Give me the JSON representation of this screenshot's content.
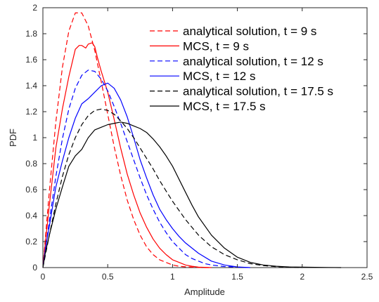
{
  "chart_data": {
    "type": "line",
    "title": "",
    "xlabel": "Amplitude",
    "ylabel": "PDF",
    "xlim": [
      0,
      2.5
    ],
    "ylim": [
      0,
      2
    ],
    "xticks": [
      0,
      0.5,
      1,
      1.5,
      2,
      2.5
    ],
    "xtick_labels": [
      "0",
      "0.5",
      "1",
      "1.5",
      "2",
      "2.5"
    ],
    "yticks": [
      0,
      0.2,
      0.4,
      0.6,
      0.8,
      1,
      1.2,
      1.4,
      1.6,
      1.8,
      2
    ],
    "ytick_labels": [
      "0",
      "0.2",
      "0.4",
      "0.6",
      "0.8",
      "1",
      "1.2",
      "1.4",
      "1.6",
      "1.8",
      "2"
    ],
    "grid": false,
    "legend_position": "top-right",
    "series": [
      {
        "name": "analytical solution, t = 9 s",
        "color": "#ff0000",
        "dash": "dashed",
        "x": [
          0,
          0.05,
          0.1,
          0.15,
          0.2,
          0.25,
          0.3,
          0.35,
          0.4,
          0.45,
          0.5,
          0.55,
          0.6,
          0.65,
          0.7,
          0.75,
          0.8,
          0.85,
          0.9,
          0.95,
          1.0,
          1.05,
          1.1,
          1.15,
          1.2,
          1.25,
          1.3
        ],
        "y": [
          0,
          0.59,
          1.12,
          1.54,
          1.82,
          1.96,
          1.96,
          1.86,
          1.67,
          1.43,
          1.18,
          0.93,
          0.71,
          0.52,
          0.37,
          0.25,
          0.16,
          0.1,
          0.06,
          0.04,
          0.02,
          0.01,
          0.006,
          0.003,
          0.001,
          0,
          0
        ]
      },
      {
        "name": "MCS, t = 9 s",
        "color": "#ff0000",
        "dash": "solid",
        "x": [
          0,
          0.02,
          0.05,
          0.1,
          0.15,
          0.2,
          0.25,
          0.28,
          0.3,
          0.33,
          0.35,
          0.38,
          0.4,
          0.42,
          0.45,
          0.5,
          0.55,
          0.6,
          0.65,
          0.7,
          0.75,
          0.8,
          0.85,
          0.9,
          0.95,
          1.0,
          1.05,
          1.1,
          1.15,
          1.2,
          1.3
        ],
        "y": [
          0,
          0.2,
          0.48,
          0.92,
          1.22,
          1.47,
          1.68,
          1.71,
          1.71,
          1.69,
          1.72,
          1.73,
          1.7,
          1.62,
          1.51,
          1.35,
          1.14,
          0.92,
          0.72,
          0.56,
          0.42,
          0.31,
          0.22,
          0.15,
          0.1,
          0.06,
          0.04,
          0.02,
          0.01,
          0.004,
          0
        ]
      },
      {
        "name": "analytical solution, t = 12 s",
        "color": "#0000ff",
        "dash": "dashed",
        "x": [
          0,
          0.05,
          0.1,
          0.15,
          0.2,
          0.25,
          0.3,
          0.35,
          0.4,
          0.45,
          0.5,
          0.55,
          0.6,
          0.65,
          0.7,
          0.75,
          0.8,
          0.85,
          0.9,
          0.95,
          1.0,
          1.05,
          1.1,
          1.15,
          1.2,
          1.25,
          1.3,
          1.4,
          1.5,
          1.6
        ],
        "y": [
          0,
          0.36,
          0.7,
          0.99,
          1.22,
          1.38,
          1.48,
          1.52,
          1.51,
          1.45,
          1.36,
          1.24,
          1.11,
          0.97,
          0.83,
          0.69,
          0.56,
          0.45,
          0.35,
          0.27,
          0.2,
          0.15,
          0.1,
          0.07,
          0.05,
          0.03,
          0.02,
          0.008,
          0.003,
          0
        ]
      },
      {
        "name": "MCS, t = 12 s",
        "color": "#0000ff",
        "dash": "solid",
        "x": [
          0,
          0.02,
          0.05,
          0.1,
          0.15,
          0.2,
          0.25,
          0.3,
          0.35,
          0.4,
          0.45,
          0.5,
          0.55,
          0.6,
          0.65,
          0.7,
          0.75,
          0.8,
          0.85,
          0.9,
          0.95,
          1.0,
          1.05,
          1.1,
          1.2,
          1.3,
          1.4,
          1.5,
          1.6
        ],
        "y": [
          0,
          0.15,
          0.32,
          0.62,
          0.82,
          1.0,
          1.15,
          1.26,
          1.3,
          1.35,
          1.4,
          1.42,
          1.38,
          1.29,
          1.16,
          1.0,
          0.83,
          0.69,
          0.56,
          0.45,
          0.37,
          0.3,
          0.24,
          0.19,
          0.11,
          0.05,
          0.02,
          0.005,
          0
        ]
      },
      {
        "name": "analytical solution, t = 17.5 s",
        "color": "#000000",
        "dash": "dashed",
        "x": [
          0,
          0.05,
          0.1,
          0.15,
          0.2,
          0.25,
          0.3,
          0.35,
          0.4,
          0.45,
          0.5,
          0.55,
          0.6,
          0.65,
          0.7,
          0.75,
          0.8,
          0.85,
          0.9,
          0.95,
          1.0,
          1.1,
          1.2,
          1.3,
          1.4,
          1.5,
          1.6,
          1.7,
          1.8,
          1.9,
          2.0
        ],
        "y": [
          0,
          0.25,
          0.49,
          0.7,
          0.87,
          1.0,
          1.1,
          1.17,
          1.21,
          1.22,
          1.21,
          1.18,
          1.13,
          1.07,
          1.0,
          0.92,
          0.84,
          0.76,
          0.67,
          0.59,
          0.51,
          0.37,
          0.25,
          0.16,
          0.1,
          0.06,
          0.03,
          0.015,
          0.007,
          0.003,
          0
        ]
      },
      {
        "name": "MCS, t = 17.5 s",
        "color": "#000000",
        "dash": "solid",
        "x": [
          0,
          0.02,
          0.05,
          0.1,
          0.15,
          0.2,
          0.25,
          0.3,
          0.35,
          0.4,
          0.45,
          0.5,
          0.55,
          0.6,
          0.65,
          0.7,
          0.75,
          0.8,
          0.85,
          0.9,
          0.95,
          1.0,
          1.05,
          1.1,
          1.15,
          1.2,
          1.3,
          1.4,
          1.5,
          1.6,
          1.7,
          1.8,
          1.9,
          2.0,
          2.1,
          2.2,
          2.3
        ],
        "y": [
          0,
          0.12,
          0.25,
          0.45,
          0.62,
          0.78,
          0.86,
          0.91,
          1.0,
          1.06,
          1.08,
          1.1,
          1.11,
          1.12,
          1.11,
          1.09,
          1.07,
          1.04,
          0.99,
          0.93,
          0.86,
          0.78,
          0.68,
          0.58,
          0.48,
          0.39,
          0.25,
          0.15,
          0.08,
          0.04,
          0.02,
          0.01,
          0.005,
          0.003,
          0.002,
          0.001,
          0
        ]
      }
    ]
  }
}
